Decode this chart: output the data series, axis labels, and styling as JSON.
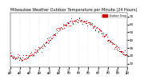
{
  "title": "Milwaukee Weather Outdoor Temperature per Minute (24 Hours)",
  "title_fontsize": 3.5,
  "dot_color": "#cc0000",
  "dot_size": 0.5,
  "background_color": "#ffffff",
  "ylim": [
    5,
    75
  ],
  "yticks": [
    10,
    20,
    30,
    40,
    50,
    60,
    70
  ],
  "ytick_labels": [
    "10",
    "20",
    "30",
    "40",
    "50",
    "60",
    "70"
  ],
  "ytick_fontsize": 3.0,
  "xtick_fontsize": 2.3,
  "legend_label": "Outdoor Temp",
  "legend_color": "#cc0000",
  "vline_positions": [
    120,
    240,
    360,
    480,
    600,
    720,
    840,
    960,
    1080,
    1200,
    1320
  ],
  "vline_color": "#bbbbbb",
  "noise_sigma": 2.0,
  "subsample": 6
}
